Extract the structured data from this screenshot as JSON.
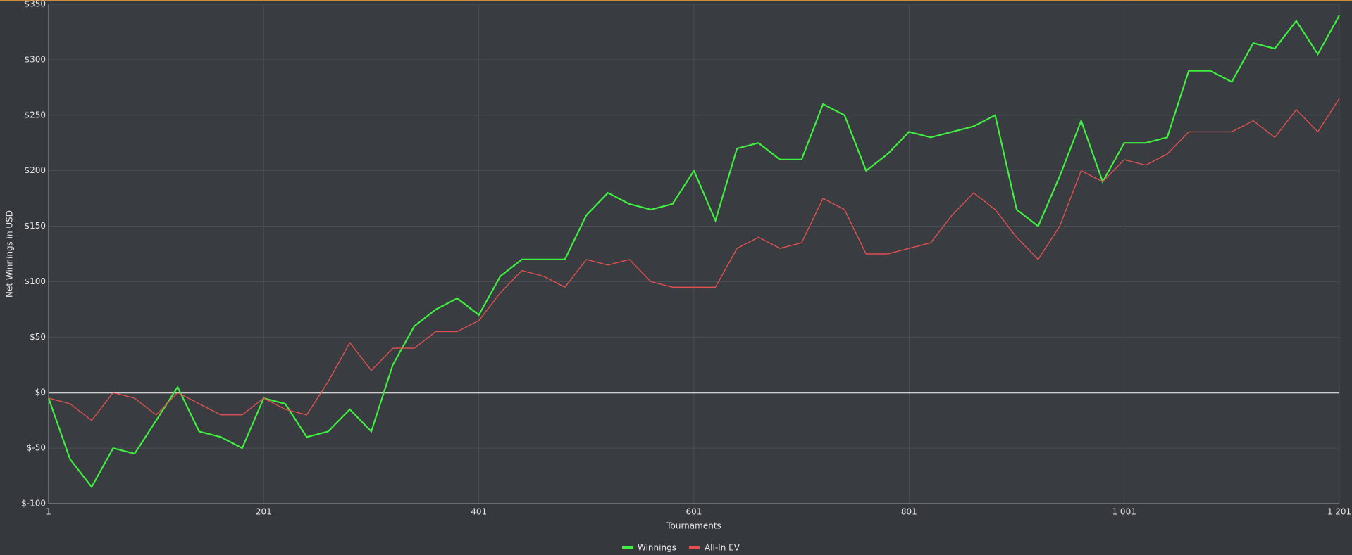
{
  "chart_data": {
    "type": "line",
    "x_label": "Tournaments",
    "y_label": "Net Winnings in USD",
    "x": [
      1,
      21,
      41,
      61,
      81,
      101,
      121,
      141,
      161,
      181,
      201,
      221,
      241,
      261,
      281,
      301,
      321,
      341,
      361,
      381,
      401,
      421,
      441,
      461,
      481,
      501,
      521,
      541,
      561,
      581,
      601,
      621,
      641,
      661,
      681,
      701,
      721,
      741,
      761,
      781,
      801,
      821,
      841,
      861,
      881,
      901,
      921,
      941,
      961,
      981,
      1001,
      1021,
      1041,
      1061,
      1081,
      1101,
      1121,
      1141,
      1161,
      1181,
      1201
    ],
    "series": [
      {
        "name": "Winnings",
        "color": "#3fef3f",
        "values": [
          -5,
          -60,
          -85,
          -50,
          -55,
          -25,
          5,
          -35,
          -40,
          -50,
          -5,
          -10,
          -40,
          -35,
          -15,
          -35,
          25,
          60,
          75,
          85,
          70,
          105,
          120,
          120,
          120,
          160,
          180,
          170,
          165,
          170,
          200,
          155,
          220,
          225,
          210,
          210,
          260,
          250,
          200,
          215,
          235,
          230,
          235,
          240,
          250,
          165,
          150,
          195,
          245,
          190,
          225,
          225,
          230,
          290,
          290,
          280,
          315,
          310,
          335,
          305,
          340
        ]
      },
      {
        "name": "All-In EV",
        "color": "#e05050",
        "values": [
          -5,
          -10,
          -25,
          0,
          -5,
          -20,
          0,
          -10,
          -20,
          -20,
          -5,
          -15,
          -20,
          10,
          45,
          20,
          40,
          40,
          55,
          55,
          65,
          90,
          110,
          105,
          95,
          120,
          115,
          120,
          100,
          95,
          95,
          95,
          130,
          140,
          130,
          135,
          175,
          165,
          125,
          125,
          130,
          135,
          160,
          180,
          165,
          140,
          120,
          150,
          200,
          190,
          210,
          205,
          215,
          235,
          235,
          235,
          245,
          230,
          255,
          235,
          265
        ]
      }
    ],
    "xlim": [
      1,
      1201
    ],
    "xticks": [
      1,
      201,
      401,
      601,
      801,
      {
        "value": 1001,
        "label": "1 001"
      },
      {
        "value": 1201,
        "label": "1 201"
      }
    ],
    "ylim": [
      -100,
      350
    ],
    "yticks": [
      {
        "value": -100,
        "label": "$-100"
      },
      {
        "value": -50,
        "label": "$-50"
      },
      {
        "value": 0,
        "label": "$0"
      },
      {
        "value": 50,
        "label": "$50"
      },
      {
        "value": 100,
        "label": "$100"
      },
      {
        "value": 150,
        "label": "$150"
      },
      {
        "value": 200,
        "label": "$200"
      },
      {
        "value": 250,
        "label": "$250"
      },
      {
        "value": 300,
        "label": "$300"
      },
      {
        "value": 350,
        "label": "$350"
      }
    ],
    "grid": true
  }
}
